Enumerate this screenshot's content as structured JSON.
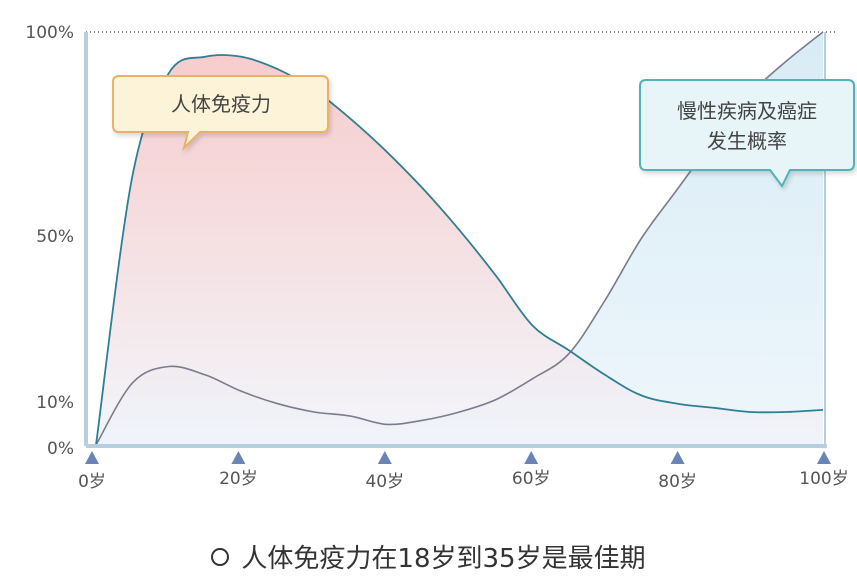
{
  "chart_data": {
    "type": "area",
    "x_unit": "age",
    "x_tick_labels": [
      "0岁",
      "20岁",
      "40岁",
      "60岁",
      "80岁",
      "100岁"
    ],
    "x_ticks": [
      0,
      20,
      40,
      60,
      80,
      100
    ],
    "y_tick_labels": [
      "100%",
      "50%",
      "10%",
      "0%"
    ],
    "y_ticks": [
      100,
      50,
      10,
      0
    ],
    "xlim": [
      0,
      100
    ],
    "ylim": [
      0,
      100
    ],
    "series": [
      {
        "name": "人体免疫力",
        "color": "#2e7f95",
        "fill_top": "#f6c3c3",
        "fill_bottom": "#f0f4fa",
        "x": [
          0,
          5,
          10,
          15,
          20,
          25,
          30,
          35,
          40,
          45,
          50,
          55,
          60,
          65,
          70,
          75,
          80,
          85,
          90,
          95,
          100
        ],
        "y": [
          0,
          65,
          90,
          94,
          94,
          91,
          86,
          79,
          71,
          62,
          52,
          41,
          29,
          23,
          17,
          12,
          10,
          9,
          8,
          8,
          8.5
        ]
      },
      {
        "name": "慢性疾病及癌症发生概率",
        "color": "#7b7b8c",
        "fill_top": "#d8ecf6",
        "fill_bottom": "#eef6fb",
        "x": [
          0,
          5,
          10,
          15,
          20,
          25,
          30,
          35,
          40,
          45,
          50,
          55,
          60,
          65,
          70,
          75,
          80,
          85,
          90,
          95,
          100
        ],
        "y": [
          0,
          15,
          19,
          17,
          13,
          10,
          8,
          7,
          5,
          6,
          8,
          11,
          16,
          22,
          35,
          50,
          62,
          74,
          85,
          93,
          100
        ]
      }
    ],
    "callouts": [
      {
        "text": [
          "人体免疫力"
        ],
        "fill": "#fdf3d9",
        "stroke": "#e8b26a"
      },
      {
        "text": [
          "慢性疾病及癌症",
          "发生概率"
        ],
        "fill": "#e7f5f9",
        "stroke": "#4fb3b8"
      }
    ],
    "top_gridline": "dotted"
  },
  "caption": "人体免疫力在18岁到35岁是最佳期"
}
